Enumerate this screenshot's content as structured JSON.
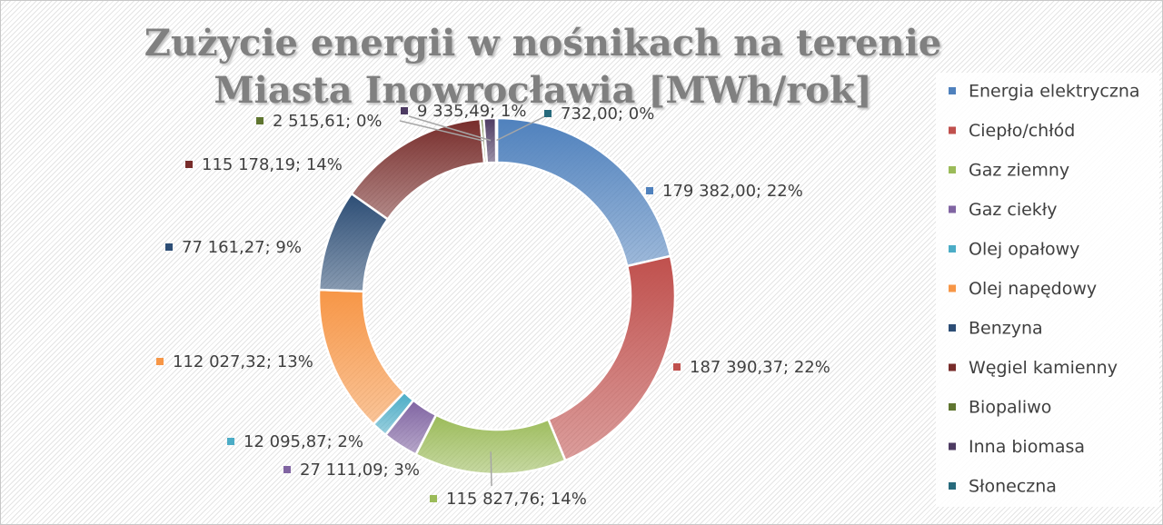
{
  "chart_data": {
    "type": "donut",
    "title": "Zużycie energii w nośnikach na terenie Miasta Inowrocławia [MWh/rok]",
    "categories": [
      "Energia elektryczna",
      "Ciepło/chłód",
      "Gaz ziemny",
      "Gaz ciekły",
      "Olej opałowy",
      "Olej napędowy",
      "Benzyna",
      "Węgiel kamienny",
      "Biopaliwo",
      "Inna biomasa",
      "Słoneczna"
    ],
    "values": [
      179382.0,
      187390.37,
      115827.76,
      27111.09,
      12095.87,
      112027.32,
      77161.27,
      115178.19,
      2515.61,
      9335.49,
      732.0
    ],
    "value_labels": [
      "179 382,00; 22%",
      "187 390,37; 22%",
      "115 827,76; 14%",
      "27 111,09; 3%",
      "12 095,87; 2%",
      "112 027,32; 13%",
      "77 161,27; 9%",
      "115 178,19; 14%",
      "2 515,61; 0%",
      "9 335,49; 1%",
      "732,00; 0%"
    ],
    "colors": [
      "#4f81bd",
      "#c0504d",
      "#9bbb59",
      "#8064a2",
      "#4bacc6",
      "#f79646",
      "#2c4d75",
      "#772c2a",
      "#5f7530",
      "#4d3b62",
      "#276a7c"
    ],
    "legend": "right"
  }
}
